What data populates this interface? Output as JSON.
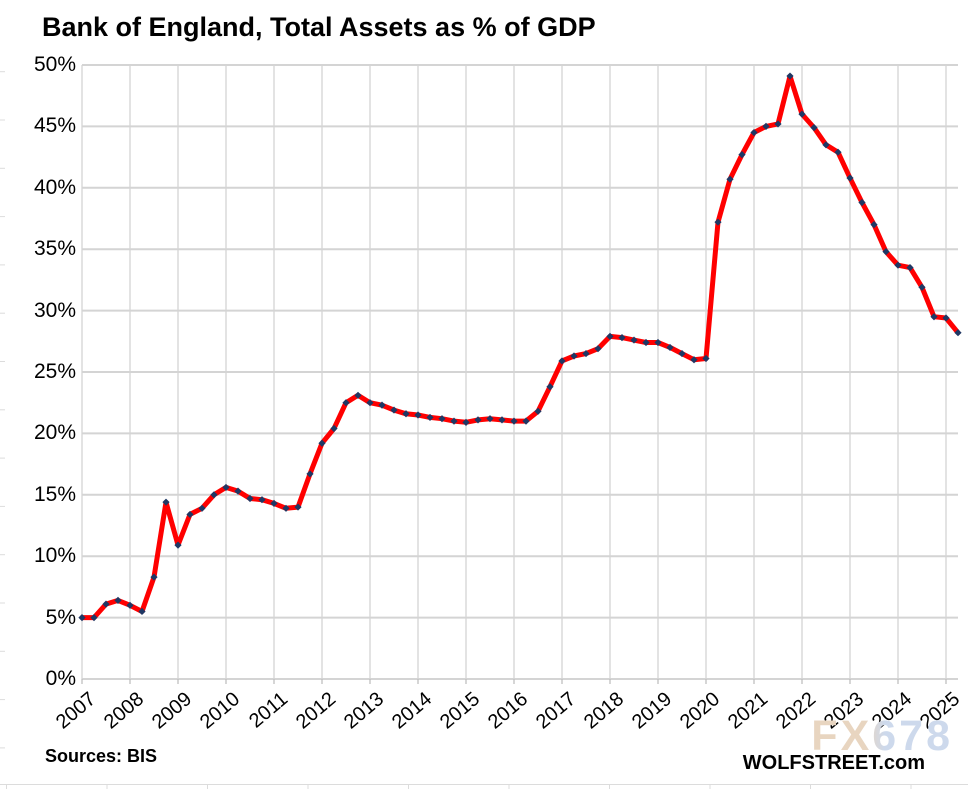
{
  "title": "Bank of England, Total Assets as % of GDP",
  "footer": {
    "sources": "Sources: BIS",
    "brand": "WOLFSTREET.com",
    "watermark": "FX678"
  },
  "colors": {
    "line": "#FF0000",
    "marker": "#1F3864",
    "grid": "#D4D4D4",
    "axis": "#BFBFBF",
    "sheet": "#DCDCDC"
  },
  "chart_data": {
    "type": "line",
    "title": "Bank of England, Total Assets as % of GDP",
    "ylabel": "Total assets as % of GDP",
    "xlabel": "",
    "ylim": [
      0,
      50
    ],
    "y_step": 5,
    "y_tick_labels": [
      "0%",
      "5%",
      "10%",
      "15%",
      "20%",
      "25%",
      "30%",
      "35%",
      "40%",
      "45%",
      "50%"
    ],
    "x_tick_labels": [
      "2007",
      "2008",
      "2009",
      "2010",
      "2011",
      "2012",
      "2013",
      "2014",
      "2015",
      "2016",
      "2017",
      "2018",
      "2019",
      "2020",
      "2021",
      "2022",
      "2023",
      "2024",
      "2025"
    ],
    "frequency": "quarterly",
    "start": "2007 Q1",
    "end": "2025 Q2",
    "grid": true,
    "legend": "none",
    "series": [
      {
        "name": "Bank of England total assets as % of GDP",
        "values": [
          5.0,
          5.0,
          6.1,
          6.4,
          6.0,
          5.5,
          8.3,
          14.4,
          10.9,
          13.4,
          13.9,
          15.0,
          15.6,
          15.3,
          14.7,
          14.6,
          14.3,
          13.9,
          14.0,
          16.7,
          19.2,
          20.4,
          22.5,
          23.1,
          22.5,
          22.3,
          21.9,
          21.6,
          21.5,
          21.3,
          21.2,
          21.0,
          20.9,
          21.1,
          21.2,
          21.1,
          21.0,
          21.0,
          21.8,
          23.8,
          25.9,
          26.3,
          26.5,
          26.9,
          27.9,
          27.8,
          27.6,
          27.4,
          27.4,
          27.0,
          26.5,
          26.0,
          26.1,
          37.2,
          40.7,
          42.7,
          44.5,
          45.0,
          45.2,
          49.1,
          46.0,
          44.9,
          43.5,
          42.9,
          40.8,
          38.8,
          37.0,
          34.8,
          33.7,
          33.5,
          31.9,
          29.5,
          29.4,
          28.2
        ]
      }
    ]
  }
}
